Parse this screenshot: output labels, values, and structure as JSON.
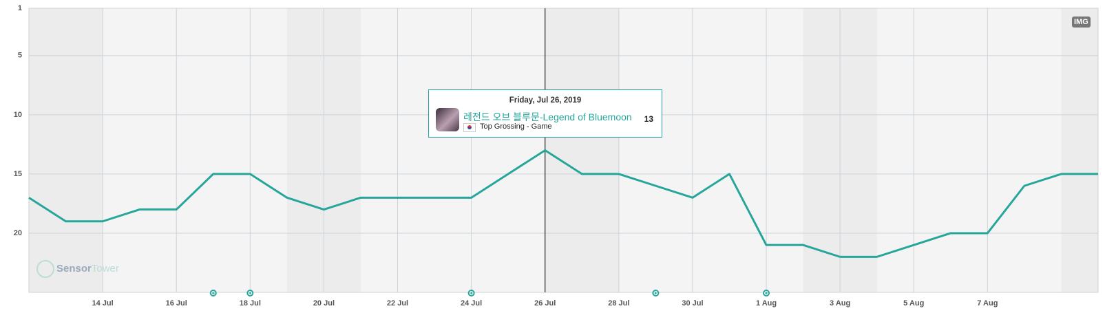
{
  "chart_data": {
    "type": "line",
    "categories": [
      null,
      null,
      "14 Jul",
      null,
      "16 Jul",
      null,
      "18 Jul",
      null,
      "20 Jul",
      null,
      "22 Jul",
      null,
      "24 Jul",
      null,
      "26 Jul",
      null,
      "28 Jul",
      null,
      "30 Jul",
      null,
      "1 Aug",
      null,
      "3 Aug",
      null,
      "5 Aug",
      null,
      "7 Aug",
      null,
      null,
      null
    ],
    "series": [
      {
        "name": "레전드 오브 블루문-Legend of Bluemoon",
        "color": "#26a69a",
        "values": [
          17,
          19,
          19,
          18,
          18,
          15,
          15,
          17,
          18,
          17,
          17,
          17,
          17,
          15,
          13,
          15,
          15,
          16,
          17,
          15,
          21,
          21,
          22,
          22,
          21,
          20,
          20,
          16,
          15,
          15
        ]
      }
    ],
    "ylim": [
      1,
      25
    ],
    "y_inverted": true,
    "yticks": [
      1,
      5,
      10,
      15,
      20
    ],
    "grid": true,
    "tooltip": {
      "date": "Friday, Jul 26, 2019",
      "subtitle": "Top Grossing - Game"
    },
    "badge": "IMG",
    "watermark": {
      "part1": "Sensor",
      "part2": "Tower"
    }
  }
}
